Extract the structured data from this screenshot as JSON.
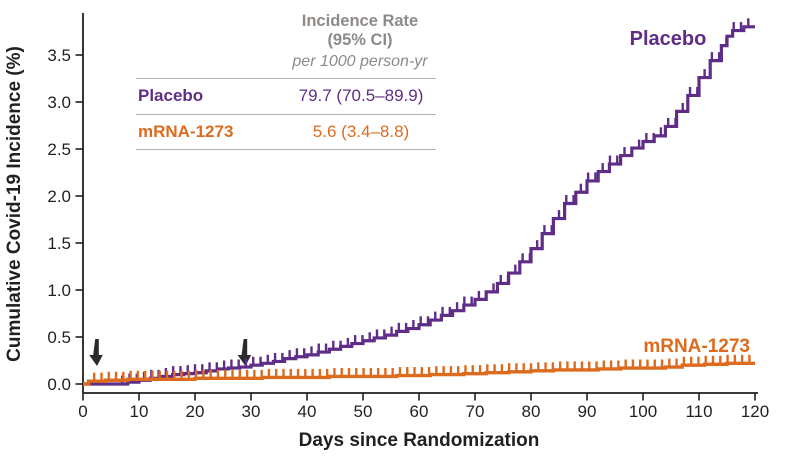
{
  "figure": {
    "y_axis_title": "Cumulative Covid-19 Incidence (%)",
    "x_axis_title": "Days since Randomization",
    "curve_labels": {
      "placebo": "Placebo",
      "mrna": "mRNA-1273"
    }
  },
  "legend_table": {
    "header_line1": "Incidence Rate",
    "header_line2": "(95% CI)",
    "subheader": "per 1000 person-yr",
    "rows": [
      {
        "label": "Placebo",
        "value": "79.7 (70.5–89.9)",
        "color": "#5f2d88"
      },
      {
        "label": "mRNA-1273",
        "value": "5.6 (3.4–8.8)",
        "color": "#dd6b1e"
      }
    ]
  },
  "chart_data": {
    "type": "line",
    "subtype": "kaplan-meier-step",
    "title": "",
    "xlabel": "Days since Randomization",
    "ylabel": "Cumulative Covid-19 Incidence (%)",
    "xlim": [
      0,
      120
    ],
    "ylim": [
      0,
      3.85
    ],
    "grid": false,
    "x_ticks": [
      0,
      10,
      20,
      30,
      40,
      50,
      60,
      70,
      80,
      90,
      100,
      110,
      120
    ],
    "y_ticks": [
      {
        "v": 0.0,
        "label": "0.0"
      },
      {
        "v": 0.5,
        "label": "0.5"
      },
      {
        "v": 1.0,
        "label": "1.0"
      },
      {
        "v": 1.5,
        "label": "1.5"
      },
      {
        "v": 2.0,
        "label": "2.0"
      },
      {
        "v": 2.5,
        "label": "2.5"
      },
      {
        "v": 3.0,
        "label": "3.0"
      },
      {
        "v": 3.5,
        "label": "3.5"
      }
    ],
    "series": [
      {
        "name": "Placebo",
        "color": "#5f2d88",
        "incidence_rate_per_1000_person_yr": "79.7 (70.5–89.9)",
        "points": [
          [
            0,
            0
          ],
          [
            8,
            0.02
          ],
          [
            10,
            0.04
          ],
          [
            12,
            0.06
          ],
          [
            14,
            0.08
          ],
          [
            16,
            0.1
          ],
          [
            18,
            0.11
          ],
          [
            20,
            0.12
          ],
          [
            22,
            0.14
          ],
          [
            24,
            0.16
          ],
          [
            26,
            0.17
          ],
          [
            28,
            0.18
          ],
          [
            30,
            0.2
          ],
          [
            32,
            0.22
          ],
          [
            34,
            0.24
          ],
          [
            36,
            0.27
          ],
          [
            38,
            0.29
          ],
          [
            40,
            0.31
          ],
          [
            42,
            0.34
          ],
          [
            44,
            0.37
          ],
          [
            46,
            0.4
          ],
          [
            48,
            0.43
          ],
          [
            50,
            0.46
          ],
          [
            52,
            0.49
          ],
          [
            54,
            0.52
          ],
          [
            56,
            0.56
          ],
          [
            58,
            0.59
          ],
          [
            60,
            0.63
          ],
          [
            62,
            0.68
          ],
          [
            64,
            0.73
          ],
          [
            66,
            0.78
          ],
          [
            68,
            0.84
          ],
          [
            70,
            0.9
          ],
          [
            72,
            0.98
          ],
          [
            74,
            1.07
          ],
          [
            76,
            1.18
          ],
          [
            78,
            1.3
          ],
          [
            80,
            1.44
          ],
          [
            82,
            1.6
          ],
          [
            84,
            1.76
          ],
          [
            86,
            1.92
          ],
          [
            88,
            2.04
          ],
          [
            90,
            2.16
          ],
          [
            92,
            2.26
          ],
          [
            94,
            2.34
          ],
          [
            96,
            2.43
          ],
          [
            98,
            2.51
          ],
          [
            100,
            2.58
          ],
          [
            102,
            2.64
          ],
          [
            104,
            2.74
          ],
          [
            106,
            2.9
          ],
          [
            108,
            3.07
          ],
          [
            110,
            3.26
          ],
          [
            112,
            3.44
          ],
          [
            114,
            3.6
          ],
          [
            115,
            3.7
          ],
          [
            116,
            3.76
          ],
          [
            118,
            3.8
          ],
          [
            120,
            3.8
          ]
        ],
        "censor_marks": {
          "from": 7,
          "to": 119.6,
          "every": 1.3
        }
      },
      {
        "name": "mRNA-1273",
        "color": "#dd6b1e",
        "incidence_rate_per_1000_person_yr": "5.6 (3.4–8.8)",
        "points": [
          [
            0,
            0
          ],
          [
            1,
            0.03
          ],
          [
            4,
            0.04
          ],
          [
            8,
            0.05
          ],
          [
            14,
            0.05
          ],
          [
            20,
            0.06
          ],
          [
            26,
            0.06
          ],
          [
            32,
            0.07
          ],
          [
            38,
            0.07
          ],
          [
            44,
            0.08
          ],
          [
            50,
            0.08
          ],
          [
            56,
            0.09
          ],
          [
            62,
            0.1
          ],
          [
            68,
            0.11
          ],
          [
            72,
            0.12
          ],
          [
            76,
            0.13
          ],
          [
            80,
            0.14
          ],
          [
            84,
            0.15
          ],
          [
            88,
            0.15
          ],
          [
            92,
            0.16
          ],
          [
            96,
            0.17
          ],
          [
            100,
            0.17
          ],
          [
            104,
            0.18
          ],
          [
            107,
            0.2
          ],
          [
            111,
            0.21
          ],
          [
            115,
            0.22
          ],
          [
            120,
            0.22
          ]
        ],
        "censor_marks": {
          "from": 2,
          "to": 119.6,
          "every": 1.3
        }
      }
    ],
    "annotations": {
      "vaccination_arrows_days": [
        2.5,
        29
      ]
    },
    "legend_position": "top-left-table"
  }
}
